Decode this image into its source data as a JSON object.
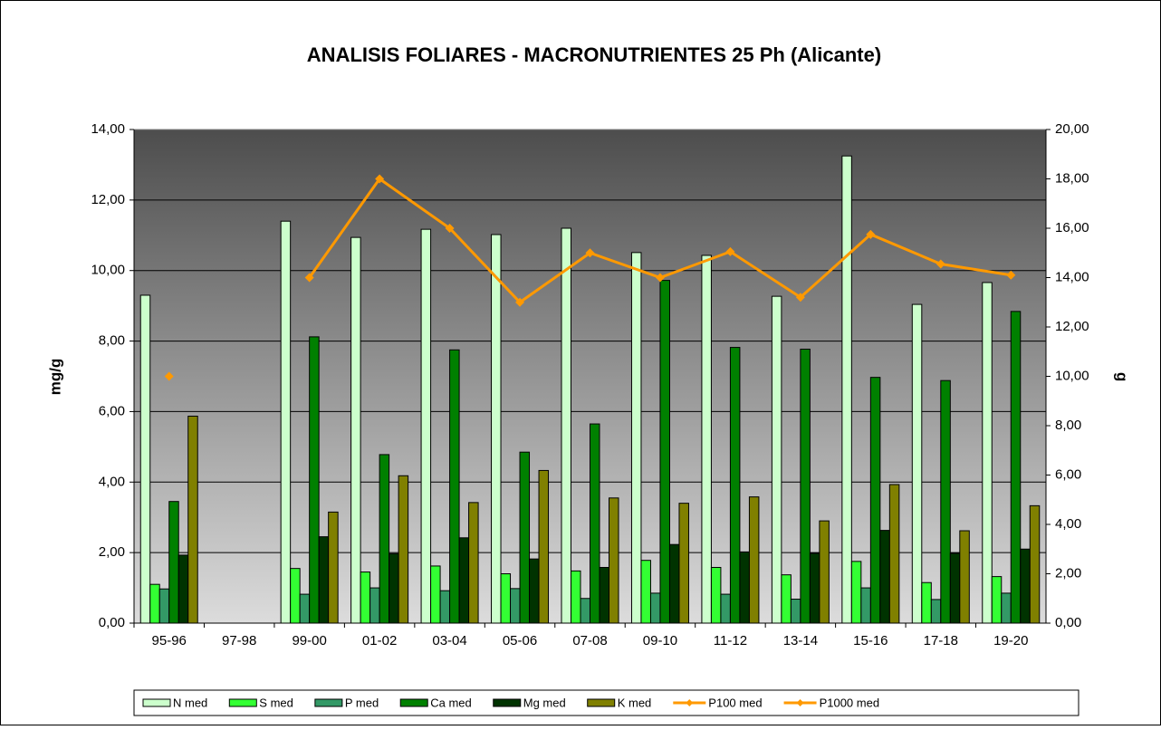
{
  "chart_data": {
    "type": "bar",
    "title": "ANALISIS FOLIARES - MACRONUTRIENTES 25 Ph (Alicante)",
    "y_label": "mg/g",
    "y2_label": "g",
    "categories": [
      "95-96",
      "97-98",
      "99-00",
      "01-02",
      "03-04",
      "05-06",
      "07-08",
      "09-10",
      "11-12",
      "13-14",
      "15-16",
      "17-18",
      "19-20"
    ],
    "ylim": [
      0,
      14
    ],
    "yticks": [
      {
        "value": 0,
        "label": "0,00"
      },
      {
        "value": 2,
        "label": "2,00"
      },
      {
        "value": 4,
        "label": "4,00"
      },
      {
        "value": 6,
        "label": "6,00"
      },
      {
        "value": 8,
        "label": "8,00"
      },
      {
        "value": 10,
        "label": "10,00"
      },
      {
        "value": 12,
        "label": "12,00"
      },
      {
        "value": 14,
        "label": "14,00"
      }
    ],
    "y2lim": [
      0,
      20
    ],
    "y2ticks": [
      {
        "value": 0,
        "label": "0,00"
      },
      {
        "value": 2,
        "label": "2,00"
      },
      {
        "value": 4,
        "label": "4,00"
      },
      {
        "value": 6,
        "label": "6,00"
      },
      {
        "value": 8,
        "label": "8,00"
      },
      {
        "value": 10,
        "label": "10,00"
      },
      {
        "value": 12,
        "label": "12,00"
      },
      {
        "value": 14,
        "label": "14,00"
      },
      {
        "value": 16,
        "label": "16,00"
      },
      {
        "value": 18,
        "label": "18,00"
      },
      {
        "value": 20,
        "label": "20,00"
      }
    ],
    "grid": true,
    "legend": "bottom",
    "series": [
      {
        "name": "N med",
        "type": "bar",
        "color": "#ccffcc",
        "values": [
          9.3,
          null,
          11.4,
          10.94,
          11.17,
          11.02,
          11.2,
          10.51,
          10.43,
          9.27,
          13.25,
          9.04,
          9.66
        ]
      },
      {
        "name": "S med",
        "type": "bar",
        "color": "#33ff33",
        "values": [
          1.1,
          null,
          1.55,
          1.45,
          1.62,
          1.4,
          1.48,
          1.78,
          1.58,
          1.37,
          1.75,
          1.15,
          1.32
        ]
      },
      {
        "name": "P med",
        "type": "bar",
        "color": "#339966",
        "values": [
          0.97,
          null,
          0.82,
          1.0,
          0.92,
          0.98,
          0.7,
          0.85,
          0.82,
          0.68,
          1.0,
          0.67,
          0.85
        ]
      },
      {
        "name": "Ca med",
        "type": "bar",
        "color": "#008000",
        "values": [
          3.45,
          null,
          8.12,
          4.78,
          7.75,
          4.85,
          5.65,
          9.72,
          7.82,
          7.77,
          6.97,
          6.88,
          8.84
        ]
      },
      {
        "name": "Mg med",
        "type": "bar",
        "color": "#003300",
        "values": [
          1.93,
          null,
          2.45,
          1.97,
          2.42,
          1.82,
          1.58,
          2.23,
          2.02,
          1.98,
          2.63,
          1.98,
          2.1
        ]
      },
      {
        "name": "K med",
        "type": "bar",
        "color": "#808000",
        "values": [
          5.87,
          null,
          3.15,
          4.18,
          3.42,
          4.33,
          3.55,
          3.4,
          3.58,
          2.9,
          3.93,
          2.62,
          3.33
        ]
      },
      {
        "name": "P100 med",
        "type": "line",
        "axis": "y2",
        "color": "#ff9900",
        "values": [
          10.0,
          null,
          null,
          null,
          null,
          null,
          null,
          null,
          null,
          null,
          null,
          null,
          null
        ]
      },
      {
        "name": "P1000 med",
        "type": "line",
        "axis": "y2",
        "color": "#ff9900",
        "values": [
          null,
          null,
          14.0,
          18.0,
          16.0,
          13.0,
          15.0,
          14.0,
          15.05,
          13.2,
          15.75,
          14.55,
          14.1
        ]
      }
    ]
  }
}
